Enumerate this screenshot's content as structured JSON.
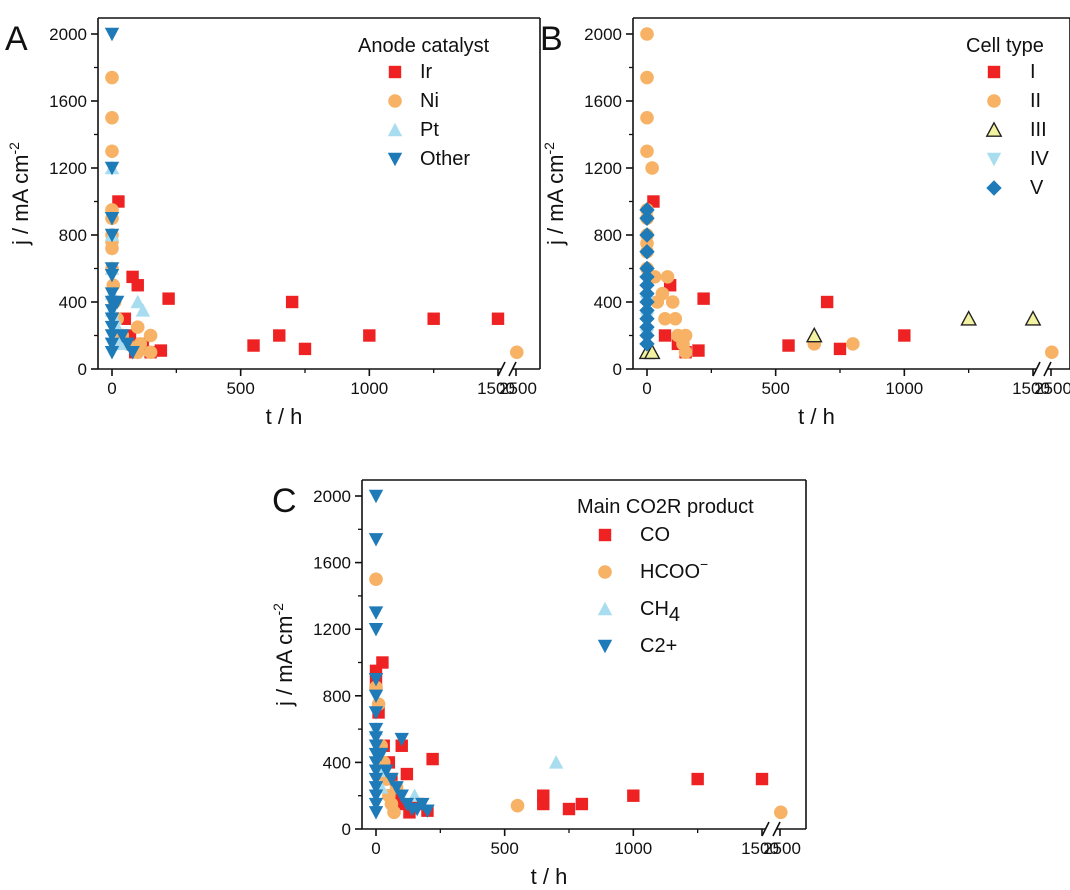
{
  "chart_data": [
    {
      "panel": "A",
      "type": "scatter",
      "xlabel": "t / h",
      "ylabel": "j / mA cm-2",
      "ylim": [
        0,
        2100
      ],
      "x_axis_break": true,
      "x_ticks": [
        "0",
        "500",
        "1000",
        "1500",
        "2500"
      ],
      "y_ticks": [
        "0",
        "400",
        "800",
        "1200",
        "1600",
        "2000"
      ],
      "legend": {
        "title": "Anode catalyst",
        "position": "top-right"
      },
      "series": [
        {
          "name": "Ir",
          "marker": "square",
          "color": "#ee2222",
          "points": [
            [
              25,
              1000
            ],
            [
              80,
              550
            ],
            [
              100,
              500
            ],
            [
              50,
              300
            ],
            [
              70,
              200
            ],
            [
              90,
              100
            ],
            [
              120,
              150
            ],
            [
              150,
              100
            ],
            [
              190,
              110
            ],
            [
              220,
              420
            ],
            [
              550,
              140
            ],
            [
              650,
              200
            ],
            [
              700,
              400
            ],
            [
              750,
              120
            ],
            [
              1000,
              200
            ],
            [
              1250,
              300
            ],
            [
              1500,
              300
            ]
          ]
        },
        {
          "name": "Ni",
          "marker": "circle",
          "color": "#f7b265",
          "points": [
            [
              0,
              1740
            ],
            [
              0,
              1500
            ],
            [
              0,
              1300
            ],
            [
              0,
              950
            ],
            [
              0,
              900
            ],
            [
              0,
              800
            ],
            [
              0,
              760
            ],
            [
              0,
              720
            ],
            [
              0,
              600
            ],
            [
              5,
              500
            ],
            [
              10,
              400
            ],
            [
              20,
              300
            ],
            [
              40,
              200
            ],
            [
              60,
              150
            ],
            [
              100,
              250
            ],
            [
              110,
              150
            ],
            [
              150,
              200
            ],
            [
              150,
              100
            ],
            [
              100,
              100
            ],
            [
              2300,
              100
            ]
          ]
        },
        {
          "name": "Pt",
          "marker": "triangle-up",
          "color": "#a8dcef",
          "points": [
            [
              0,
              1200
            ],
            [
              0,
              800
            ],
            [
              0,
              600
            ],
            [
              0,
              450
            ],
            [
              0,
              350
            ],
            [
              10,
              300
            ],
            [
              20,
              250
            ],
            [
              30,
              150
            ],
            [
              100,
              400
            ],
            [
              120,
              350
            ]
          ]
        },
        {
          "name": "Other",
          "marker": "triangle-down",
          "color": "#1f7ab8",
          "points": [
            [
              0,
              2000
            ],
            [
              0,
              1200
            ],
            [
              0,
              900
            ],
            [
              0,
              800
            ],
            [
              0,
              600
            ],
            [
              0,
              560
            ],
            [
              0,
              450
            ],
            [
              0,
              400
            ],
            [
              0,
              350
            ],
            [
              0,
              300
            ],
            [
              0,
              250
            ],
            [
              0,
              200
            ],
            [
              0,
              150
            ],
            [
              0,
              100
            ],
            [
              20,
              400
            ],
            [
              40,
              200
            ],
            [
              60,
              150
            ],
            [
              80,
              100
            ]
          ]
        }
      ]
    },
    {
      "panel": "B",
      "type": "scatter",
      "xlabel": "t / h",
      "ylabel": "j / mA cm-2",
      "ylim": [
        0,
        2100
      ],
      "x_axis_break": true,
      "x_ticks": [
        "0",
        "500",
        "1000",
        "1500",
        "2500"
      ],
      "y_ticks": [
        "0",
        "400",
        "800",
        "1200",
        "1600",
        "2000"
      ],
      "legend": {
        "title": "Cell type",
        "position": "top-right"
      },
      "series": [
        {
          "name": "I",
          "marker": "square",
          "color": "#ee2222",
          "points": [
            [
              25,
              1000
            ],
            [
              90,
              500
            ],
            [
              70,
              200
            ],
            [
              120,
              150
            ],
            [
              150,
              100
            ],
            [
              200,
              110
            ],
            [
              220,
              420
            ],
            [
              550,
              140
            ],
            [
              700,
              400
            ],
            [
              750,
              120
            ],
            [
              1000,
              200
            ]
          ]
        },
        {
          "name": "II",
          "marker": "circle",
          "color": "#f7b265",
          "points": [
            [
              0,
              2000
            ],
            [
              0,
              1740
            ],
            [
              0,
              1500
            ],
            [
              0,
              1300
            ],
            [
              20,
              1200
            ],
            [
              0,
              950
            ],
            [
              0,
              900
            ],
            [
              0,
              800
            ],
            [
              0,
              750
            ],
            [
              0,
              700
            ],
            [
              0,
              600
            ],
            [
              30,
              550
            ],
            [
              60,
              450
            ],
            [
              80,
              550
            ],
            [
              40,
              400
            ],
            [
              70,
              300
            ],
            [
              100,
              400
            ],
            [
              110,
              300
            ],
            [
              120,
              200
            ],
            [
              140,
              150
            ],
            [
              150,
              100
            ],
            [
              150,
              200
            ],
            [
              650,
              150
            ],
            [
              800,
              150
            ],
            [
              2300,
              100
            ]
          ]
        },
        {
          "name": "III",
          "marker": "triangle-up-outline",
          "color": "#f2f2a0",
          "points": [
            [
              0,
              100
            ],
            [
              20,
              100
            ],
            [
              650,
              200
            ],
            [
              1250,
              300
            ],
            [
              1500,
              300
            ]
          ]
        },
        {
          "name": "IV",
          "marker": "triangle-down",
          "color": "#a8dcef",
          "points": [
            [
              0,
              400
            ],
            [
              0,
              300
            ],
            [
              0,
              200
            ]
          ]
        },
        {
          "name": "V",
          "marker": "diamond",
          "color": "#1f7ab8",
          "points": [
            [
              0,
              950
            ],
            [
              0,
              900
            ],
            [
              0,
              800
            ],
            [
              0,
              700
            ],
            [
              0,
              600
            ],
            [
              0,
              550
            ],
            [
              0,
              500
            ],
            [
              0,
              450
            ],
            [
              0,
              400
            ],
            [
              0,
              350
            ],
            [
              0,
              300
            ],
            [
              0,
              250
            ],
            [
              0,
              200
            ],
            [
              0,
              150
            ]
          ]
        }
      ]
    },
    {
      "panel": "C",
      "type": "scatter",
      "xlabel": "t / h",
      "ylabel": "j / mA cm-2",
      "ylim": [
        0,
        2100
      ],
      "x_axis_break": true,
      "x_ticks": [
        "0",
        "500",
        "1000",
        "1500",
        "2500"
      ],
      "y_ticks": [
        "0",
        "400",
        "800",
        "1200",
        "1600",
        "2000"
      ],
      "legend": {
        "title": "Main CO2R product",
        "position": "top-right"
      },
      "series": [
        {
          "name": "CO",
          "marker": "square",
          "color": "#ee2222",
          "points": [
            [
              25,
              1000
            ],
            [
              0,
              950
            ],
            [
              0,
              900
            ],
            [
              10,
              700
            ],
            [
              30,
              500
            ],
            [
              50,
              400
            ],
            [
              60,
              300
            ],
            [
              70,
              200
            ],
            [
              90,
              150
            ],
            [
              100,
              500
            ],
            [
              120,
              330
            ],
            [
              130,
              100
            ],
            [
              160,
              150
            ],
            [
              200,
              110
            ],
            [
              220,
              420
            ],
            [
              650,
              150
            ],
            [
              650,
              200
            ],
            [
              750,
              120
            ],
            [
              800,
              150
            ],
            [
              1000,
              200
            ],
            [
              1250,
              300
            ],
            [
              1500,
              300
            ]
          ]
        },
        {
          "name": "HCOO⁻",
          "marker": "circle",
          "color": "#f7b265",
          "points": [
            [
              0,
              1500
            ],
            [
              0,
              850
            ],
            [
              10,
              750
            ],
            [
              20,
              500
            ],
            [
              30,
              400
            ],
            [
              40,
              300
            ],
            [
              50,
              200
            ],
            [
              60,
              150
            ],
            [
              70,
              100
            ],
            [
              80,
              250
            ],
            [
              550,
              140
            ],
            [
              2300,
              100
            ]
          ]
        },
        {
          "name": "CH4",
          "marker": "triangle-up",
          "color": "#a8dcef",
          "points": [
            [
              0,
              600
            ],
            [
              10,
              350
            ],
            [
              20,
              250
            ],
            [
              150,
              200
            ],
            [
              700,
              400
            ]
          ]
        },
        {
          "name": "C2+",
          "marker": "triangle-down",
          "color": "#1f7ab8",
          "points": [
            [
              0,
              2000
            ],
            [
              0,
              1740
            ],
            [
              0,
              1300
            ],
            [
              0,
              1200
            ],
            [
              0,
              900
            ],
            [
              0,
              800
            ],
            [
              0,
              700
            ],
            [
              0,
              600
            ],
            [
              0,
              550
            ],
            [
              0,
              500
            ],
            [
              0,
              450
            ],
            [
              0,
              400
            ],
            [
              0,
              350
            ],
            [
              0,
              300
            ],
            [
              0,
              250
            ],
            [
              0,
              200
            ],
            [
              0,
              150
            ],
            [
              0,
              100
            ],
            [
              20,
              450
            ],
            [
              40,
              350
            ],
            [
              60,
              300
            ],
            [
              80,
              250
            ],
            [
              100,
              540
            ],
            [
              100,
              200
            ],
            [
              120,
              150
            ],
            [
              140,
              120
            ],
            [
              160,
              120
            ],
            [
              180,
              150
            ],
            [
              200,
              110
            ]
          ]
        }
      ]
    }
  ],
  "panels": {
    "A": {
      "letter": "A",
      "legend_title": "Anode catalyst",
      "legend": [
        "Ir",
        "Ni",
        "Pt",
        "Other"
      ]
    },
    "B": {
      "letter": "B",
      "legend_title": "Cell type",
      "legend": [
        "I",
        "II",
        "III",
        "IV",
        "V"
      ]
    },
    "C": {
      "letter": "C",
      "legend_title": "Main CO2R product",
      "legend": [
        "CO",
        "HCOO⁻",
        "CH4",
        "C2+"
      ]
    }
  },
  "axes": {
    "xlabel": "t / h",
    "ylabel_main": "j / mA cm",
    "ylabel_sup": "-2",
    "x_ticks": [
      "0",
      "500",
      "1000",
      "1500",
      "2500"
    ],
    "y_ticks": [
      "0",
      "400",
      "800",
      "1200",
      "1600",
      "2000"
    ]
  }
}
